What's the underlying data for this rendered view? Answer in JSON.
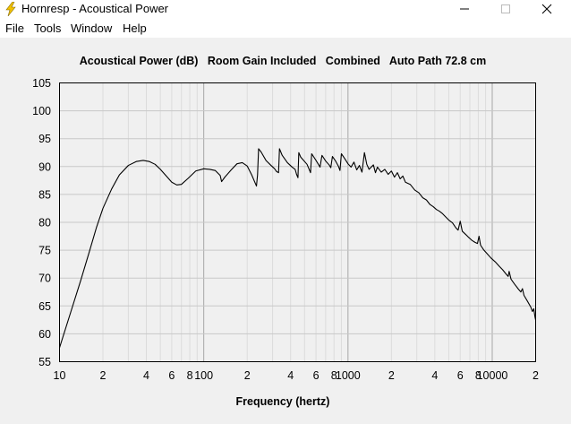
{
  "window": {
    "title": "Hornresp - Acoustical Power",
    "icon": "lightning-bolt-icon",
    "controls": [
      "minimize-icon",
      "maximize-icon",
      "close-icon"
    ]
  },
  "menu": {
    "items": [
      {
        "label": "File"
      },
      {
        "label": "Tools"
      },
      {
        "label": "Window"
      },
      {
        "label": "Help"
      }
    ]
  },
  "chart_data": {
    "type": "line",
    "title": "Acoustical Power (dB)   Room Gain Included   Combined   Auto Path 72.8 cm",
    "xlabel": "Frequency (hertz)",
    "ylabel": "",
    "xscale": "log",
    "xlim": [
      10,
      20000
    ],
    "ylim": [
      55,
      105
    ],
    "grid": true,
    "legend": "none",
    "line_color": "#000000",
    "yticks": [
      "105",
      "100",
      "95",
      "90",
      "85",
      "80",
      "75",
      "70",
      "65",
      "60",
      "55"
    ],
    "xtick_labels": [
      "10",
      "2",
      "4",
      "6",
      "8",
      "100",
      "2",
      "4",
      "6",
      "8",
      "1000",
      "2",
      "4",
      "6",
      "8",
      "10000",
      "2"
    ],
    "xtick_values": [
      10,
      20,
      40,
      60,
      80,
      100,
      200,
      400,
      600,
      800,
      1000,
      2000,
      4000,
      6000,
      8000,
      10000,
      20000
    ],
    "series": [
      {
        "points": [
          [
            10,
            57.5
          ],
          [
            12,
            64
          ],
          [
            14,
            69.5
          ],
          [
            16,
            74.5
          ],
          [
            18,
            79
          ],
          [
            20,
            82.5
          ],
          [
            23,
            86
          ],
          [
            26,
            88.5
          ],
          [
            30,
            90.2
          ],
          [
            34,
            90.9
          ],
          [
            38,
            91.1
          ],
          [
            42,
            90.9
          ],
          [
            46,
            90.4
          ],
          [
            50,
            89.5
          ],
          [
            55,
            88.3
          ],
          [
            60,
            87.2
          ],
          [
            65,
            86.7
          ],
          [
            70,
            86.8
          ],
          [
            78,
            87.9
          ],
          [
            88,
            89.2
          ],
          [
            100,
            89.6
          ],
          [
            110,
            89.5
          ],
          [
            120,
            89.3
          ],
          [
            130,
            88.4
          ],
          [
            133,
            87.3
          ],
          [
            140,
            88.1
          ],
          [
            155,
            89.4
          ],
          [
            170,
            90.5
          ],
          [
            185,
            90.7
          ],
          [
            200,
            90.1
          ],
          [
            215,
            88.5
          ],
          [
            225,
            87.3
          ],
          [
            232,
            86.5
          ],
          [
            236,
            88.5
          ],
          [
            240,
            93.2
          ],
          [
            250,
            92.6
          ],
          [
            270,
            91.1
          ],
          [
            290,
            90.3
          ],
          [
            310,
            89.6
          ],
          [
            320,
            89.1
          ],
          [
            330,
            88.9
          ],
          [
            335,
            93.2
          ],
          [
            350,
            92.0
          ],
          [
            380,
            90.7
          ],
          [
            410,
            89.9
          ],
          [
            430,
            89.5
          ],
          [
            440,
            88.6
          ],
          [
            450,
            88.0
          ],
          [
            456,
            92.5
          ],
          [
            470,
            91.7
          ],
          [
            520,
            90.4
          ],
          [
            540,
            89.4
          ],
          [
            550,
            88.9
          ],
          [
            560,
            92.3
          ],
          [
            600,
            91.1
          ],
          [
            620,
            90.5
          ],
          [
            640,
            89.9
          ],
          [
            660,
            92.0
          ],
          [
            700,
            91.0
          ],
          [
            740,
            90.3
          ],
          [
            760,
            89.8
          ],
          [
            780,
            91.8
          ],
          [
            820,
            91.0
          ],
          [
            860,
            90.0
          ],
          [
            880,
            89.3
          ],
          [
            900,
            92.3
          ],
          [
            950,
            91.4
          ],
          [
            1000,
            90.5
          ],
          [
            1050,
            89.9
          ],
          [
            1100,
            90.8
          ],
          [
            1150,
            89.4
          ],
          [
            1200,
            90.2
          ],
          [
            1250,
            89.0
          ],
          [
            1300,
            92.5
          ],
          [
            1350,
            90.4
          ],
          [
            1400,
            89.5
          ],
          [
            1500,
            90.3
          ],
          [
            1550,
            88.9
          ],
          [
            1600,
            89.9
          ],
          [
            1700,
            89.0
          ],
          [
            1800,
            89.5
          ],
          [
            1900,
            88.6
          ],
          [
            2000,
            89.2
          ],
          [
            2100,
            88.1
          ],
          [
            2200,
            88.9
          ],
          [
            2300,
            87.8
          ],
          [
            2400,
            88.3
          ],
          [
            2500,
            87.2
          ],
          [
            2700,
            86.8
          ],
          [
            2900,
            85.8
          ],
          [
            3100,
            85.3
          ],
          [
            3300,
            84.4
          ],
          [
            3500,
            84.0
          ],
          [
            3700,
            83.2
          ],
          [
            3900,
            82.8
          ],
          [
            4100,
            82.3
          ],
          [
            4300,
            82.0
          ],
          [
            4500,
            81.6
          ],
          [
            4700,
            81.1
          ],
          [
            5000,
            80.4
          ],
          [
            5300,
            79.9
          ],
          [
            5600,
            79.0
          ],
          [
            5800,
            78.6
          ],
          [
            6000,
            80.2
          ],
          [
            6200,
            78.4
          ],
          [
            6500,
            77.9
          ],
          [
            6800,
            77.4
          ],
          [
            7200,
            76.8
          ],
          [
            7600,
            76.4
          ],
          [
            7900,
            76.2
          ],
          [
            8100,
            77.5
          ],
          [
            8300,
            75.9
          ],
          [
            8700,
            75.1
          ],
          [
            9200,
            74.4
          ],
          [
            9800,
            73.6
          ],
          [
            10500,
            72.9
          ],
          [
            11200,
            72.1
          ],
          [
            11800,
            71.5
          ],
          [
            12500,
            70.7
          ],
          [
            12900,
            70.3
          ],
          [
            13100,
            71.2
          ],
          [
            13500,
            69.8
          ],
          [
            14300,
            68.9
          ],
          [
            15200,
            68.0
          ],
          [
            15800,
            67.5
          ],
          [
            16200,
            68.1
          ],
          [
            16600,
            66.9
          ],
          [
            17500,
            65.9
          ],
          [
            18500,
            64.8
          ],
          [
            19000,
            64.0
          ],
          [
            19400,
            64.5
          ],
          [
            19800,
            63.0
          ],
          [
            20000,
            62.5
          ]
        ]
      }
    ]
  }
}
